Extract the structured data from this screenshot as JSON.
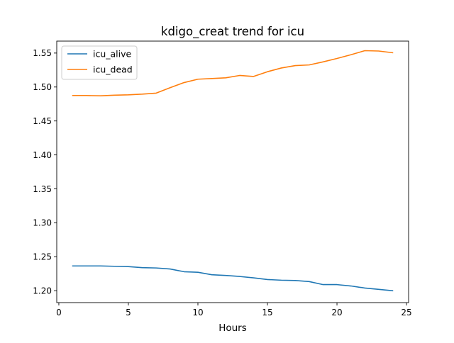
{
  "chart_data": {
    "type": "line",
    "title": "kdigo_creat trend for icu",
    "xlabel": "Hours",
    "ylabel": "",
    "xlim": [
      -0.15,
      25.15
    ],
    "ylim": [
      1.1825,
      1.5676
    ],
    "xticks": [
      0,
      5,
      10,
      15,
      20,
      25
    ],
    "yticks": [
      1.2,
      1.25,
      1.3,
      1.35,
      1.4,
      1.45,
      1.5,
      1.55
    ],
    "legend_position": "upper-left",
    "grid": false,
    "x": [
      1,
      2,
      3,
      4,
      5,
      6,
      7,
      8,
      9,
      10,
      11,
      12,
      13,
      14,
      15,
      16,
      17,
      18,
      19,
      20,
      21,
      22,
      23,
      24
    ],
    "series": [
      {
        "name": "icu_alive",
        "color": "#1f77b4",
        "values": [
          1.2365,
          1.2365,
          1.2365,
          1.236,
          1.2355,
          1.234,
          1.2335,
          1.232,
          1.228,
          1.2272,
          1.2235,
          1.2225,
          1.221,
          1.219,
          1.2165,
          1.2155,
          1.215,
          1.2135,
          1.209,
          1.209,
          1.207,
          1.204,
          1.202,
          1.2
        ]
      },
      {
        "name": "icu_dead",
        "color": "#ff7f0e",
        "values": [
          1.4875,
          1.4875,
          1.487,
          1.488,
          1.4885,
          1.4895,
          1.491,
          1.499,
          1.5065,
          1.5115,
          1.5125,
          1.5135,
          1.517,
          1.5155,
          1.5225,
          1.528,
          1.5315,
          1.5325,
          1.537,
          1.542,
          1.5475,
          1.5535,
          1.553,
          1.5505
        ]
      }
    ]
  }
}
